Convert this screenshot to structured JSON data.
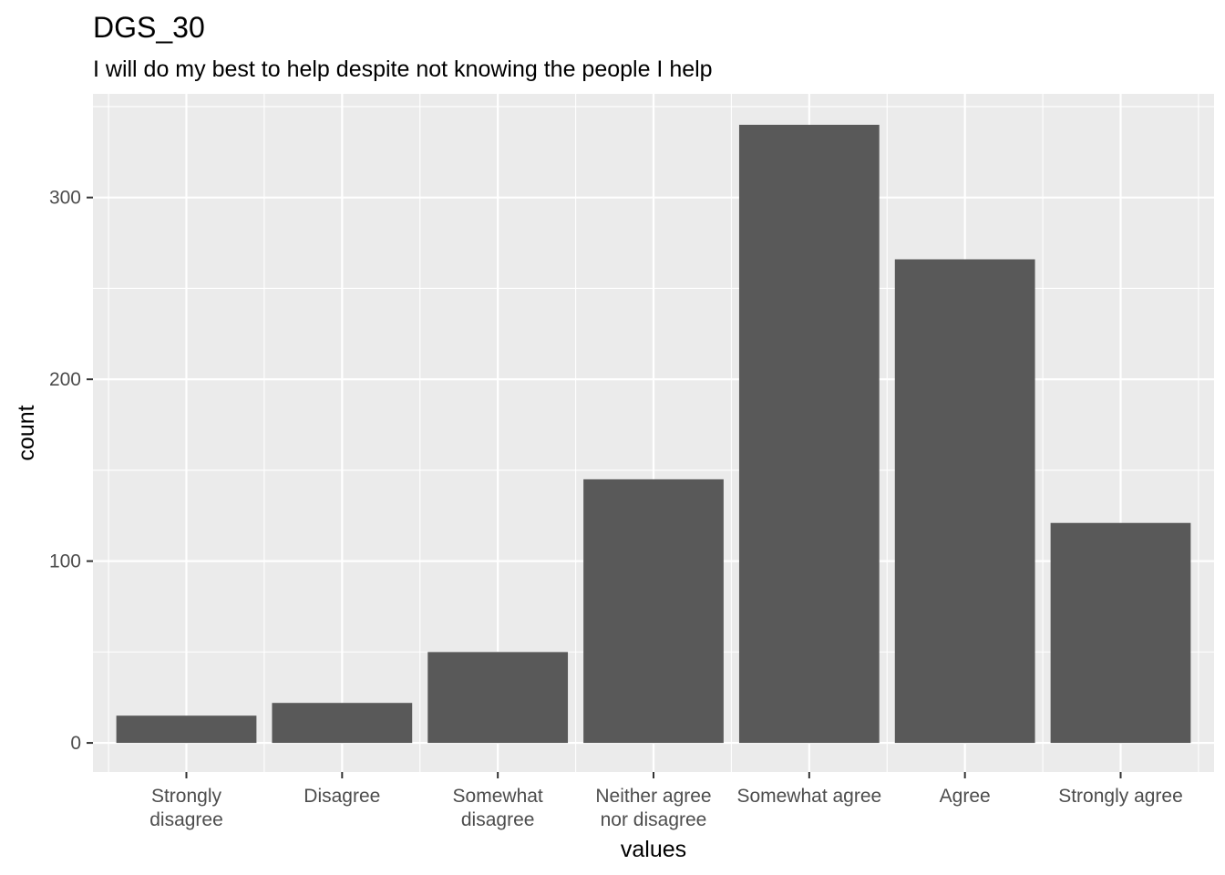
{
  "chart_data": {
    "type": "bar",
    "title": "DGS_30",
    "subtitle": "I will do my best to help despite not knowing the people I help",
    "xlabel": "values",
    "ylabel": "count",
    "categories": [
      [
        "Strongly",
        "disagree"
      ],
      [
        "Disagree"
      ],
      [
        "Somewhat",
        "disagree"
      ],
      [
        "Neither agree",
        "nor disagree"
      ],
      [
        "Somewhat agree"
      ],
      [
        "Agree"
      ],
      [
        "Strongly agree"
      ]
    ],
    "values": [
      15,
      22,
      50,
      145,
      340,
      266,
      121
    ],
    "ylim": [
      -16,
      357
    ],
    "yticks": [
      0,
      100,
      200,
      300
    ],
    "grid": true,
    "colors": {
      "panel": "#ebebeb",
      "grid": "#ffffff",
      "bar": "#595959",
      "tick_text": "#4d4d4d",
      "tick_mark": "#333333"
    }
  }
}
